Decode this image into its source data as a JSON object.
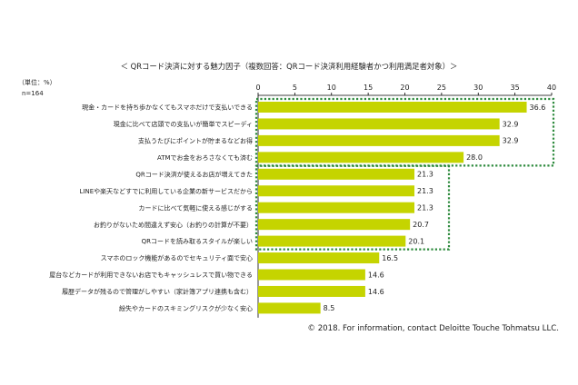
{
  "chart_data": {
    "type": "bar",
    "orientation": "horizontal",
    "title": "＜ QRコード決済に対する魅力因子（複数回答：QRコード決済利用経験者かつ利用満足者対象）＞",
    "unit_note": "（単位：%）",
    "sample_note": "n=164",
    "categories": [
      "現金・カードを持ち歩かなくてもスマホだけで支払いできる",
      "現金に比べて店頭での支払いが簡単でスピーディ",
      "支払うたびにポイントが貯まるなどお得",
      "ATMでお金をおろさなくても済む",
      "QRコード決済が使えるお店が増えてきた",
      "LINEや楽天などすでに利用している企業の新サービスだから",
      "カードに比べて気軽に使える感じがする",
      "お釣りがないため間違えず安心（お釣りの計算が不要）",
      "QRコードを読み取るスタイルが楽しい",
      "スマホのロック機能があるのでセキュリティ面で安心",
      "屋台などカードが利用できないお店でもキャッシュレスで買い物できる",
      "履歴データが残るので管理がしやすい（家計簿アプリ連携も含む）",
      "紛失やカードのスキミングリスクが少なく安心"
    ],
    "values": [
      36.6,
      32.9,
      32.9,
      28.0,
      21.3,
      21.3,
      21.3,
      20.7,
      20.1,
      16.5,
      14.6,
      14.6,
      8.5
    ],
    "value_labels": [
      "36.6",
      "32.9",
      "32.9",
      "28.0",
      "21.3",
      "21.3",
      "21.3",
      "20.7",
      "20.1",
      "16.5",
      "14.6",
      "14.6",
      "8.5"
    ],
    "xlim": [
      0,
      40
    ],
    "x_ticks": [
      "0",
      "5",
      "10",
      "15",
      "20",
      "25",
      "30",
      "35",
      "40"
    ],
    "bar_color": "#c5d400",
    "highlight_color": "#2e8b3e",
    "highlight_groups": [
      {
        "first_category": 0,
        "last_category": 3
      },
      {
        "first_category": 4,
        "last_category": 8
      }
    ],
    "grid": false
  },
  "footer": {
    "copyright": "© 2018. For information, contact Deloitte Touche Tohmatsu LLC."
  }
}
